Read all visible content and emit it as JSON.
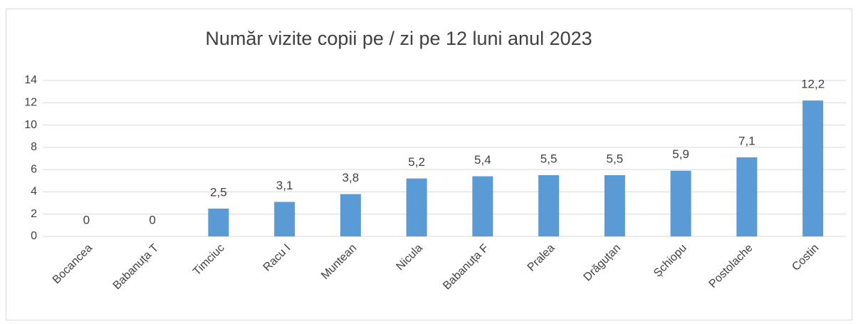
{
  "chart_data": {
    "type": "bar",
    "title": "Număr vizite copii pe / zi  pe 12 luni anul 2023",
    "categories": [
      "Bocancea",
      "Babanuța T",
      "Timciuc",
      "Racu I",
      "Muntean",
      "Nicula",
      "Babanuța F",
      "Pralea",
      "Drăguțan",
      "Șchiopu",
      "Postolache",
      "Costin"
    ],
    "values": [
      0,
      0,
      2.5,
      3.1,
      3.8,
      5.2,
      5.4,
      5.5,
      5.5,
      5.9,
      7.1,
      12.2
    ],
    "value_labels": [
      "0",
      "0",
      "2,5",
      "3,1",
      "3,8",
      "5,2",
      "5,4",
      "5,5",
      "5,5",
      "5,9",
      "7,1",
      "12,2"
    ],
    "color": "#5b9bd5",
    "ylim": [
      0,
      14
    ],
    "yticks": [
      0,
      2,
      4,
      6,
      8,
      10,
      12,
      14
    ],
    "grid": true
  }
}
